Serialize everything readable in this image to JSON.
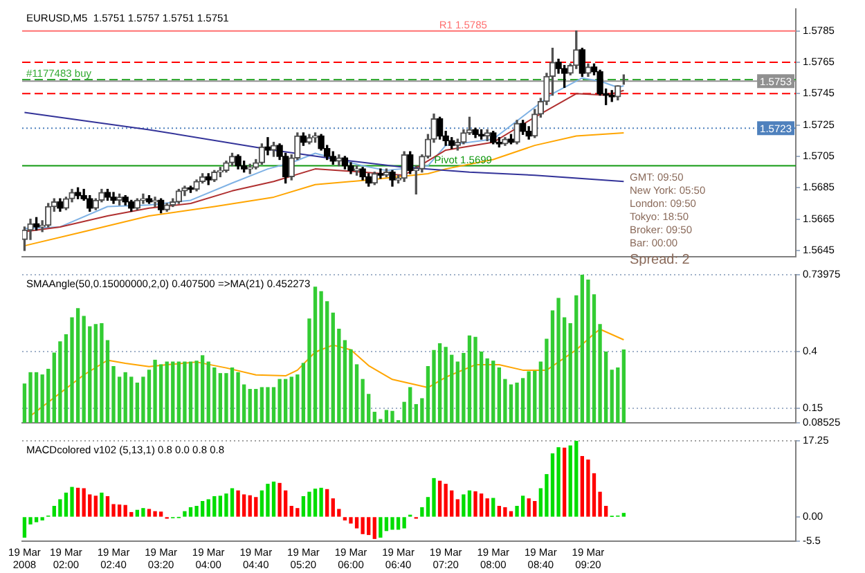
{
  "chart_data": [
    {
      "type": "candlestick",
      "title": "EURUSD,M5  1.5751 1.5757 1.5751 1.5751",
      "tick_labels": "y",
      "marker": "none",
      "xlim": [
        "2008-03-19T01:23",
        "2008-03-19T12:15"
      ],
      "ylim": [
        1.5641,
        1.5799
      ],
      "yticks": [
        1.5785,
        1.5765,
        1.5745,
        1.5725,
        1.5705,
        1.5685,
        1.5665,
        1.5645
      ],
      "x": [
        "2008-03-19T01:25",
        "2008-03-19T01:30",
        "2008-03-19T01:35",
        "2008-03-19T01:40",
        "2008-03-19T01:45",
        "2008-03-19T01:50",
        "2008-03-19T01:55",
        "2008-03-19T02:00",
        "2008-03-19T02:05",
        "2008-03-19T02:10",
        "2008-03-19T02:15",
        "2008-03-19T02:20",
        "2008-03-19T02:25",
        "2008-03-19T02:30",
        "2008-03-19T02:35",
        "2008-03-19T02:40",
        "2008-03-19T02:45",
        "2008-03-19T02:50",
        "2008-03-19T02:55",
        "2008-03-19T03:00",
        "2008-03-19T03:05",
        "2008-03-19T03:10",
        "2008-03-19T03:15",
        "2008-03-19T03:20",
        "2008-03-19T03:25",
        "2008-03-19T03:30",
        "2008-03-19T03:35",
        "2008-03-19T03:40",
        "2008-03-19T03:45",
        "2008-03-19T03:50",
        "2008-03-19T03:55",
        "2008-03-19T04:00",
        "2008-03-19T04:05",
        "2008-03-19T04:10",
        "2008-03-19T04:15",
        "2008-03-19T04:20",
        "2008-03-19T04:25",
        "2008-03-19T04:30",
        "2008-03-19T04:35",
        "2008-03-19T04:40",
        "2008-03-19T04:45",
        "2008-03-19T04:50",
        "2008-03-19T04:55",
        "2008-03-19T05:00",
        "2008-03-19T05:05",
        "2008-03-19T05:10",
        "2008-03-19T05:15",
        "2008-03-19T05:20",
        "2008-03-19T05:25",
        "2008-03-19T05:30",
        "2008-03-19T05:35",
        "2008-03-19T05:40",
        "2008-03-19T05:45",
        "2008-03-19T05:50",
        "2008-03-19T05:55",
        "2008-03-19T06:00",
        "2008-03-19T06:05",
        "2008-03-19T06:10",
        "2008-03-19T06:15",
        "2008-03-19T06:20",
        "2008-03-19T06:25",
        "2008-03-19T06:30",
        "2008-03-19T06:35",
        "2008-03-19T06:40",
        "2008-03-19T06:45",
        "2008-03-19T06:50",
        "2008-03-19T06:55",
        "2008-03-19T07:00",
        "2008-03-19T07:05",
        "2008-03-19T07:10",
        "2008-03-19T07:15",
        "2008-03-19T07:20",
        "2008-03-19T07:25",
        "2008-03-19T07:30",
        "2008-03-19T07:35",
        "2008-03-19T07:40",
        "2008-03-19T07:45",
        "2008-03-19T07:50",
        "2008-03-19T07:55",
        "2008-03-19T08:00",
        "2008-03-19T08:05",
        "2008-03-19T08:10",
        "2008-03-19T08:15",
        "2008-03-19T08:20",
        "2008-03-19T08:25",
        "2008-03-19T08:30",
        "2008-03-19T08:35",
        "2008-03-19T08:40",
        "2008-03-19T08:45",
        "2008-03-19T08:50",
        "2008-03-19T08:55",
        "2008-03-19T09:00",
        "2008-03-19T09:05",
        "2008-03-19T09:10",
        "2008-03-19T09:15",
        "2008-03-19T09:20",
        "2008-03-19T09:25",
        "2008-03-19T09:30",
        "2008-03-19T09:35",
        "2008-03-19T09:40",
        "2008-03-19T09:45",
        "2008-03-19T09:50"
      ],
      "ohlc": [
        [
          1.5652,
          1.566,
          1.5645,
          1.5658
        ],
        [
          1.5658,
          1.5665,
          1.5652,
          1.5662
        ],
        [
          1.5662,
          1.5666,
          1.5658,
          1.566
        ],
        [
          1.566,
          1.5664,
          1.5657,
          1.5661
        ],
        [
          1.5661,
          1.5675,
          1.566,
          1.5673
        ],
        [
          1.5673,
          1.5678,
          1.567,
          1.5676
        ],
        [
          1.5676,
          1.5678,
          1.567,
          1.5672
        ],
        [
          1.5672,
          1.5679,
          1.5671,
          1.5678
        ],
        [
          1.5678,
          1.5684,
          1.5676,
          1.5682
        ],
        [
          1.5682,
          1.5685,
          1.5678,
          1.568
        ],
        [
          1.568,
          1.5684,
          1.5677,
          1.5678
        ],
        [
          1.5678,
          1.568,
          1.567,
          1.5672
        ],
        [
          1.5672,
          1.5678,
          1.5671,
          1.5677
        ],
        [
          1.5677,
          1.5684,
          1.5676,
          1.5682
        ],
        [
          1.5682,
          1.5684,
          1.5677,
          1.5679
        ],
        [
          1.5679,
          1.5682,
          1.5675,
          1.5677
        ],
        [
          1.5677,
          1.5681,
          1.5674,
          1.5679
        ],
        [
          1.5679,
          1.568,
          1.5674,
          1.5676
        ],
        [
          1.5676,
          1.5677,
          1.567,
          1.5672
        ],
        [
          1.5672,
          1.5678,
          1.5671,
          1.5677
        ],
        [
          1.5677,
          1.5681,
          1.5675,
          1.5678
        ],
        [
          1.5678,
          1.568,
          1.5675,
          1.5676
        ],
        [
          1.5676,
          1.5679,
          1.5673,
          1.5677
        ],
        [
          1.5677,
          1.5678,
          1.5669,
          1.5671
        ],
        [
          1.5671,
          1.5675,
          1.567,
          1.5674
        ],
        [
          1.5674,
          1.5678,
          1.5673,
          1.5676
        ],
        [
          1.5676,
          1.5684,
          1.5675,
          1.5683
        ],
        [
          1.5683,
          1.5686,
          1.568,
          1.5685
        ],
        [
          1.5685,
          1.5686,
          1.5682,
          1.5684
        ],
        [
          1.5684,
          1.569,
          1.5683,
          1.5689
        ],
        [
          1.5689,
          1.5694,
          1.5688,
          1.5692
        ],
        [
          1.5692,
          1.5694,
          1.5687,
          1.569
        ],
        [
          1.569,
          1.5696,
          1.5689,
          1.5695
        ],
        [
          1.5695,
          1.5698,
          1.5692,
          1.5696
        ],
        [
          1.5696,
          1.5702,
          1.5695,
          1.5701
        ],
        [
          1.5701,
          1.5707,
          1.5699,
          1.5705
        ],
        [
          1.5705,
          1.5706,
          1.5697,
          1.5699
        ],
        [
          1.5699,
          1.5702,
          1.5695,
          1.5697
        ],
        [
          1.5697,
          1.57,
          1.5694,
          1.5698
        ],
        [
          1.5698,
          1.5703,
          1.5697,
          1.5701
        ],
        [
          1.5701,
          1.5713,
          1.57,
          1.5711
        ],
        [
          1.5711,
          1.5717,
          1.5706,
          1.5709
        ],
        [
          1.5709,
          1.5714,
          1.5705,
          1.5712
        ],
        [
          1.5712,
          1.5713,
          1.5703,
          1.5705
        ],
        [
          1.5705,
          1.5707,
          1.5688,
          1.5692
        ],
        [
          1.5692,
          1.5706,
          1.569,
          1.5704
        ],
        [
          1.5704,
          1.572,
          1.5703,
          1.5718
        ],
        [
          1.5718,
          1.572,
          1.5712,
          1.5714
        ],
        [
          1.5714,
          1.5719,
          1.5713,
          1.5717
        ],
        [
          1.5717,
          1.572,
          1.5714,
          1.5718
        ],
        [
          1.5718,
          1.5719,
          1.5709,
          1.571
        ],
        [
          1.571,
          1.5712,
          1.5703,
          1.5705
        ],
        [
          1.5705,
          1.5708,
          1.57,
          1.5702
        ],
        [
          1.5702,
          1.5706,
          1.5699,
          1.5704
        ],
        [
          1.5704,
          1.5705,
          1.5697,
          1.5699
        ],
        [
          1.5699,
          1.5701,
          1.5694,
          1.5696
        ],
        [
          1.5696,
          1.5699,
          1.5693,
          1.5697
        ],
        [
          1.5697,
          1.5698,
          1.569,
          1.5692
        ],
        [
          1.5692,
          1.5694,
          1.5686,
          1.5688
        ],
        [
          1.5688,
          1.5695,
          1.5687,
          1.5694
        ],
        [
          1.5694,
          1.5697,
          1.5691,
          1.5693
        ],
        [
          1.5693,
          1.5697,
          1.5692,
          1.5695
        ],
        [
          1.5695,
          1.5696,
          1.5686,
          1.569
        ],
        [
          1.569,
          1.5693,
          1.5688,
          1.5691
        ],
        [
          1.5691,
          1.5708,
          1.5689,
          1.5706
        ],
        [
          1.5706,
          1.5708,
          1.5694,
          1.5696
        ],
        [
          1.5696,
          1.5699,
          1.5681,
          1.5697
        ],
        [
          1.5697,
          1.5706,
          1.5695,
          1.5705
        ],
        [
          1.5705,
          1.5719,
          1.5704,
          1.5716
        ],
        [
          1.5716,
          1.5732,
          1.5714,
          1.5729
        ],
        [
          1.5729,
          1.573,
          1.5716,
          1.5718
        ],
        [
          1.5718,
          1.5721,
          1.5712,
          1.5715
        ],
        [
          1.5715,
          1.5717,
          1.571,
          1.5712
        ],
        [
          1.5712,
          1.5716,
          1.5709,
          1.5714
        ],
        [
          1.5714,
          1.5722,
          1.5713,
          1.572
        ],
        [
          1.572,
          1.573,
          1.5719,
          1.5722
        ],
        [
          1.5722,
          1.5723,
          1.5717,
          1.5719
        ],
        [
          1.5719,
          1.5722,
          1.5716,
          1.5718
        ],
        [
          1.5718,
          1.5722,
          1.5715,
          1.572
        ],
        [
          1.572,
          1.5721,
          1.5713,
          1.5714
        ],
        [
          1.5714,
          1.5717,
          1.5711,
          1.5713
        ],
        [
          1.5713,
          1.5717,
          1.5712,
          1.5716
        ],
        [
          1.5716,
          1.5719,
          1.5713,
          1.5714
        ],
        [
          1.5714,
          1.5728,
          1.5713,
          1.5726
        ],
        [
          1.5726,
          1.5728,
          1.5719,
          1.5721
        ],
        [
          1.5721,
          1.5724,
          1.5716,
          1.5718
        ],
        [
          1.5718,
          1.5735,
          1.5717,
          1.5732
        ],
        [
          1.5732,
          1.5742,
          1.573,
          1.574
        ],
        [
          1.574,
          1.5758,
          1.5738,
          1.5756
        ],
        [
          1.5756,
          1.5774,
          1.5744,
          1.5765
        ],
        [
          1.5765,
          1.5767,
          1.5758,
          1.5761
        ],
        [
          1.5761,
          1.5763,
          1.5749,
          1.5758
        ],
        [
          1.5758,
          1.5764,
          1.5757,
          1.5763
        ],
        [
          1.5763,
          1.5785,
          1.5761,
          1.5773
        ],
        [
          1.5773,
          1.5774,
          1.5756,
          1.5758
        ],
        [
          1.5758,
          1.5764,
          1.5756,
          1.5762
        ],
        [
          1.5762,
          1.5764,
          1.5757,
          1.5759
        ],
        [
          1.5759,
          1.576,
          1.5744,
          1.5745
        ],
        [
          1.5745,
          1.5748,
          1.5738,
          1.5744
        ],
        [
          1.5744,
          1.5747,
          1.574,
          1.5743
        ],
        [
          1.5743,
          1.575,
          1.5741,
          1.575
        ],
        [
          1.5751,
          1.5757,
          1.5751,
          1.5751
        ]
      ],
      "series": [
        {
          "type": "line",
          "color": "#333399",
          "x": [
            "2008-03-19T01:25",
            "2008-03-19T03:10",
            "2008-03-19T04:55",
            "2008-03-19T05:50",
            "2008-03-19T06:45",
            "2008-03-19T07:40",
            "2008-03-19T08:35",
            "2008-03-19T09:50"
          ],
          "values": [
            1.5733,
            1.5722,
            1.5709,
            1.5703,
            1.5698,
            1.5695,
            1.5693,
            1.5689
          ]
        },
        {
          "type": "line",
          "color": "#ffa500",
          "x": [
            "2008-03-19T01:25",
            "2008-03-19T02:15",
            "2008-03-19T03:10",
            "2008-03-19T04:05",
            "2008-03-19T04:55",
            "2008-03-19T05:30",
            "2008-03-19T06:15",
            "2008-03-19T07:05",
            "2008-03-19T07:20",
            "2008-03-19T08:00",
            "2008-03-19T08:35",
            "2008-03-19T09:10",
            "2008-03-19T09:50"
          ],
          "values": [
            1.5648,
            1.5657,
            1.5667,
            1.5673,
            1.5679,
            1.5687,
            1.569,
            1.5694,
            1.5697,
            1.5703,
            1.5712,
            1.5718,
            1.572
          ]
        },
        {
          "type": "line",
          "color": "#b03030",
          "x": [
            "2008-03-19T01:25",
            "2008-03-19T01:55",
            "2008-03-19T02:35",
            "2008-03-19T03:10",
            "2008-03-19T03:45",
            "2008-03-19T04:20",
            "2008-03-19T04:55",
            "2008-03-19T05:30",
            "2008-03-19T06:10",
            "2008-03-19T06:45",
            "2008-03-19T07:20",
            "2008-03-19T08:00",
            "2008-03-19T08:35",
            "2008-03-19T09:10",
            "2008-03-19T09:35",
            "2008-03-19T09:50"
          ],
          "values": [
            1.5657,
            1.566,
            1.5667,
            1.5672,
            1.5675,
            1.5683,
            1.5689,
            1.5697,
            1.5695,
            1.5693,
            1.5709,
            1.5714,
            1.573,
            1.5745,
            1.5744,
            1.5747
          ]
        },
        {
          "type": "line",
          "color": "#7fb2e5",
          "x": [
            "2008-03-19T01:25",
            "2008-03-19T01:55",
            "2008-03-19T02:35",
            "2008-03-19T03:10",
            "2008-03-19T03:45",
            "2008-03-19T04:20",
            "2008-03-19T04:50",
            "2008-03-19T05:10",
            "2008-03-19T05:30",
            "2008-03-19T05:50",
            "2008-03-19T06:10",
            "2008-03-19T06:30",
            "2008-03-19T07:05",
            "2008-03-19T07:20",
            "2008-03-19T08:00",
            "2008-03-19T08:50",
            "2008-03-19T09:15",
            "2008-03-19T09:30",
            "2008-03-19T09:45",
            "2008-03-19T09:50"
          ],
          "values": [
            1.5659,
            1.566,
            1.5673,
            1.5674,
            1.5677,
            1.5688,
            1.5697,
            1.5701,
            1.5707,
            1.5703,
            1.5699,
            1.5696,
            1.5699,
            1.5712,
            1.5716,
            1.5745,
            1.5755,
            1.5753,
            1.5749,
            1.575
          ]
        }
      ],
      "ref_lines": [
        {
          "axis": "y",
          "value": 1.5785,
          "label": "R1 1.5785",
          "color": "#ff7070",
          "line_style": "solid"
        },
        {
          "axis": "y",
          "value": 1.5765,
          "color": "#ff0000",
          "line_style": "dashed"
        },
        {
          "axis": "y",
          "value": 1.5745,
          "color": "#ff0000",
          "line_style": "dashed"
        },
        {
          "axis": "y",
          "value": 1.5754,
          "label": "#1177483 buy",
          "color": "#33aa33",
          "line_style": "dashed"
        },
        {
          "axis": "y",
          "value": 1.5753,
          "label": "1.5753",
          "color": "#909090",
          "line_style": "solid"
        },
        {
          "axis": "y",
          "value": 1.5723,
          "label": "1.5723",
          "color": "#4f81bd",
          "line_style": "dotted"
        },
        {
          "axis": "y",
          "value": 1.5699,
          "label": "Pivot 1.5699",
          "color": "#119911",
          "line_style": "solid"
        }
      ],
      "annotations": [
        "GMT: 09:50",
        "New York: 05:50",
        "London: 09:50",
        "Tokyo: 18:50",
        "Broker: 09:50",
        "Bar: 00:00",
        "Spread: 2"
      ]
    },
    {
      "type": "bar",
      "title": "SMAAngle(50,0.15000000,2,0) 0.407500 =>MA(21) 0.452273",
      "tick_labels": "y",
      "grid": "y",
      "marker": "none",
      "xlim": [
        "2008-03-19T01:23",
        "2008-03-19T12:15"
      ],
      "ylim": [
        0.08525,
        0.73975
      ],
      "yticks": [
        0.73975,
        0.4,
        0.15,
        0.08525
      ],
      "x": [
        "2008-03-19T01:25",
        "2008-03-19T01:30",
        "2008-03-19T01:35",
        "2008-03-19T01:40",
        "2008-03-19T01:45",
        "2008-03-19T01:50",
        "2008-03-19T01:55",
        "2008-03-19T02:00",
        "2008-03-19T02:05",
        "2008-03-19T02:10",
        "2008-03-19T02:15",
        "2008-03-19T02:20",
        "2008-03-19T02:25",
        "2008-03-19T02:30",
        "2008-03-19T02:35",
        "2008-03-19T02:40",
        "2008-03-19T02:45",
        "2008-03-19T02:50",
        "2008-03-19T02:55",
        "2008-03-19T03:00",
        "2008-03-19T03:05",
        "2008-03-19T03:10",
        "2008-03-19T03:15",
        "2008-03-19T03:20",
        "2008-03-19T03:25",
        "2008-03-19T03:30",
        "2008-03-19T03:35",
        "2008-03-19T03:40",
        "2008-03-19T03:45",
        "2008-03-19T03:50",
        "2008-03-19T03:55",
        "2008-03-19T04:00",
        "2008-03-19T04:05",
        "2008-03-19T04:10",
        "2008-03-19T04:15",
        "2008-03-19T04:20",
        "2008-03-19T04:25",
        "2008-03-19T04:30",
        "2008-03-19T04:35",
        "2008-03-19T04:40",
        "2008-03-19T04:45",
        "2008-03-19T04:50",
        "2008-03-19T04:55",
        "2008-03-19T05:00",
        "2008-03-19T05:05",
        "2008-03-19T05:10",
        "2008-03-19T05:15",
        "2008-03-19T05:20",
        "2008-03-19T05:25",
        "2008-03-19T05:30",
        "2008-03-19T05:35",
        "2008-03-19T05:40",
        "2008-03-19T05:45",
        "2008-03-19T05:50",
        "2008-03-19T05:55",
        "2008-03-19T06:00",
        "2008-03-19T06:05",
        "2008-03-19T06:10",
        "2008-03-19T06:15",
        "2008-03-19T06:20",
        "2008-03-19T06:25",
        "2008-03-19T06:30",
        "2008-03-19T06:35",
        "2008-03-19T06:40",
        "2008-03-19T06:45",
        "2008-03-19T06:50",
        "2008-03-19T06:55",
        "2008-03-19T07:00",
        "2008-03-19T07:05",
        "2008-03-19T07:10",
        "2008-03-19T07:15",
        "2008-03-19T07:20",
        "2008-03-19T07:25",
        "2008-03-19T07:30",
        "2008-03-19T07:35",
        "2008-03-19T07:40",
        "2008-03-19T07:45",
        "2008-03-19T07:50",
        "2008-03-19T07:55",
        "2008-03-19T08:00",
        "2008-03-19T08:05",
        "2008-03-19T08:10",
        "2008-03-19T08:15",
        "2008-03-19T08:20",
        "2008-03-19T08:25",
        "2008-03-19T08:30",
        "2008-03-19T08:35",
        "2008-03-19T08:40",
        "2008-03-19T08:45",
        "2008-03-19T08:50",
        "2008-03-19T08:55",
        "2008-03-19T09:00",
        "2008-03-19T09:05",
        "2008-03-19T09:10",
        "2008-03-19T09:15",
        "2008-03-19T09:20",
        "2008-03-19T09:25",
        "2008-03-19T09:30",
        "2008-03-19T09:35",
        "2008-03-19T09:40",
        "2008-03-19T09:45",
        "2008-03-19T09:50"
      ],
      "series": [
        {
          "type": "bar",
          "color": "#33cc33",
          "values": [
            0.257,
            0.307,
            0.307,
            0.297,
            0.322,
            0.394,
            0.443,
            0.475,
            0.55,
            0.59,
            0.556,
            0.51,
            0.52,
            0.524,
            0.449,
            0.334,
            0.287,
            0.307,
            0.287,
            0.261,
            0.287,
            0.318,
            0.362,
            0.342,
            0.354,
            0.354,
            0.354,
            0.354,
            0.354,
            0.358,
            0.382,
            0.354,
            0.328,
            0.303,
            0.303,
            0.328,
            0.307,
            0.253,
            0.233,
            0.233,
            0.241,
            0.241,
            0.241,
            0.277,
            0.277,
            0.287,
            0.297,
            0.348,
            0.544,
            0.685,
            0.665,
            0.621,
            0.57,
            0.499,
            0.449,
            0.408,
            0.342,
            0.277,
            0.211,
            0.132,
            0.1,
            0.14,
            0.136,
            0.095,
            0.176,
            0.241,
            0.166,
            0.192,
            0.334,
            0.405,
            0.435,
            0.419,
            0.384,
            0.354,
            0.392,
            0.469,
            0.463,
            0.398,
            0.368,
            0.358,
            0.328,
            0.277,
            0.253,
            0.261,
            0.281,
            0.311,
            0.313,
            0.354,
            0.455,
            0.58,
            0.635,
            0.55,
            0.524,
            0.647,
            0.739,
            0.716,
            0.651,
            0.52,
            0.398,
            0.318,
            0.328,
            0.4075
          ]
        },
        {
          "type": "line",
          "color": "#ffa500",
          "x": [
            "2008-03-19T01:30",
            "2008-03-19T01:55",
            "2008-03-19T02:15",
            "2008-03-19T02:35",
            "2008-03-19T02:50",
            "2008-03-19T03:10",
            "2008-03-19T03:25",
            "2008-03-19T03:50",
            "2008-03-19T04:15",
            "2008-03-19T04:40",
            "2008-03-19T05:05",
            "2008-03-19T05:15",
            "2008-03-19T05:30",
            "2008-03-19T05:45",
            "2008-03-19T06:00",
            "2008-03-19T06:15",
            "2008-03-19T06:35",
            "2008-03-19T07:05",
            "2008-03-19T07:20",
            "2008-03-19T07:45",
            "2008-03-19T08:05",
            "2008-03-19T08:25",
            "2008-03-19T08:45",
            "2008-03-19T09:10",
            "2008-03-19T09:25",
            "2008-03-19T09:30",
            "2008-03-19T09:50"
          ],
          "values": [
            0.116,
            0.217,
            0.297,
            0.362,
            0.348,
            0.334,
            0.342,
            0.354,
            0.328,
            0.297,
            0.293,
            0.318,
            0.398,
            0.429,
            0.408,
            0.338,
            0.277,
            0.241,
            0.287,
            0.342,
            0.342,
            0.318,
            0.318,
            0.408,
            0.479,
            0.499,
            0.4523
          ]
        }
      ]
    },
    {
      "type": "bar",
      "title": "MACDcolored v102 (5,13,1) 0.8 0.0 0.8 0.8",
      "xlim": [
        "2008-03-19T01:23",
        "2008-03-19T12:15"
      ],
      "ylim": [
        -5.5,
        17.25
      ],
      "yticks": [
        17.25,
        {
          "value": 0,
          "label": "0.00"
        },
        -5.5
      ],
      "xticks": [
        {
          "value": "2008-03-19T01:25",
          "label": "19 Mar 2008"
        },
        {
          "value": "2008-03-19T02:00",
          "label": "19 Mar 02:00"
        },
        {
          "value": "2008-03-19T02:40",
          "label": "19 Mar 02:40"
        },
        {
          "value": "2008-03-19T03:20",
          "label": "19 Mar 03:20"
        },
        {
          "value": "2008-03-19T04:00",
          "label": "19 Mar 04:00"
        },
        {
          "value": "2008-03-19T04:40",
          "label": "19 Mar 04:40"
        },
        {
          "value": "2008-03-19T05:20",
          "label": "19 Mar 05:20"
        },
        {
          "value": "2008-03-19T06:00",
          "label": "19 Mar 06:00"
        },
        {
          "value": "2008-03-19T06:40",
          "label": "19 Mar 06:40"
        },
        {
          "value": "2008-03-19T07:20",
          "label": "19 Mar 07:20"
        },
        {
          "value": "2008-03-19T08:00",
          "label": "19 Mar 08:00"
        },
        {
          "value": "2008-03-19T08:40",
          "label": "19 Mar 08:40"
        },
        {
          "value": "2008-03-19T09:20",
          "label": "19 Mar 09:20"
        }
      ],
      "x": [
        "2008-03-19T01:25",
        "2008-03-19T01:30",
        "2008-03-19T01:35",
        "2008-03-19T01:40",
        "2008-03-19T01:45",
        "2008-03-19T01:50",
        "2008-03-19T01:55",
        "2008-03-19T02:00",
        "2008-03-19T02:05",
        "2008-03-19T02:10",
        "2008-03-19T02:15",
        "2008-03-19T02:20",
        "2008-03-19T02:25",
        "2008-03-19T02:30",
        "2008-03-19T02:35",
        "2008-03-19T02:40",
        "2008-03-19T02:45",
        "2008-03-19T02:50",
        "2008-03-19T02:55",
        "2008-03-19T03:00",
        "2008-03-19T03:05",
        "2008-03-19T03:10",
        "2008-03-19T03:15",
        "2008-03-19T03:20",
        "2008-03-19T03:25",
        "2008-03-19T03:30",
        "2008-03-19T03:35",
        "2008-03-19T03:40",
        "2008-03-19T03:45",
        "2008-03-19T03:50",
        "2008-03-19T03:55",
        "2008-03-19T04:00",
        "2008-03-19T04:05",
        "2008-03-19T04:10",
        "2008-03-19T04:15",
        "2008-03-19T04:20",
        "2008-03-19T04:25",
        "2008-03-19T04:30",
        "2008-03-19T04:35",
        "2008-03-19T04:40",
        "2008-03-19T04:45",
        "2008-03-19T04:50",
        "2008-03-19T04:55",
        "2008-03-19T05:00",
        "2008-03-19T05:05",
        "2008-03-19T05:10",
        "2008-03-19T05:15",
        "2008-03-19T05:20",
        "2008-03-19T05:25",
        "2008-03-19T05:30",
        "2008-03-19T05:35",
        "2008-03-19T05:40",
        "2008-03-19T05:45",
        "2008-03-19T05:50",
        "2008-03-19T05:55",
        "2008-03-19T06:00",
        "2008-03-19T06:05",
        "2008-03-19T06:10",
        "2008-03-19T06:15",
        "2008-03-19T06:20",
        "2008-03-19T06:25",
        "2008-03-19T06:30",
        "2008-03-19T06:35",
        "2008-03-19T06:40",
        "2008-03-19T06:45",
        "2008-03-19T06:50",
        "2008-03-19T06:55",
        "2008-03-19T07:00",
        "2008-03-19T07:05",
        "2008-03-19T07:10",
        "2008-03-19T07:15",
        "2008-03-19T07:20",
        "2008-03-19T07:25",
        "2008-03-19T07:30",
        "2008-03-19T07:35",
        "2008-03-19T07:40",
        "2008-03-19T07:45",
        "2008-03-19T07:50",
        "2008-03-19T07:55",
        "2008-03-19T08:00",
        "2008-03-19T08:05",
        "2008-03-19T08:10",
        "2008-03-19T08:15",
        "2008-03-19T08:20",
        "2008-03-19T08:25",
        "2008-03-19T08:30",
        "2008-03-19T08:35",
        "2008-03-19T08:40",
        "2008-03-19T08:45",
        "2008-03-19T08:50",
        "2008-03-19T08:55",
        "2008-03-19T09:00",
        "2008-03-19T09:05",
        "2008-03-19T09:10",
        "2008-03-19T09:15",
        "2008-03-19T09:20",
        "2008-03-19T09:25",
        "2008-03-19T09:30",
        "2008-03-19T09:35",
        "2008-03-19T09:40",
        "2008-03-19T09:45",
        "2008-03-19T09:50"
      ],
      "values": [
        -4.6,
        -1.6,
        -1.1,
        -0.7,
        0.2,
        2.4,
        3.9,
        5.4,
        6.7,
        6.5,
        6.4,
        5.0,
        4.7,
        5.4,
        4.6,
        2.8,
        2.7,
        2.6,
        1.0,
        1.5,
        1.9,
        1.7,
        1.2,
        1.1,
        -0.3,
        -0.2,
        -0.1,
        1.2,
        2.1,
        2.4,
        3.5,
        3.9,
        4.6,
        4.7,
        5.2,
        6.4,
        5.9,
        5.0,
        4.8,
        4.4,
        5.9,
        7.4,
        7.9,
        7.6,
        5.9,
        2.4,
        1.9,
        4.6,
        5.6,
        6.3,
        6.5,
        6.2,
        4.1,
        1.7,
        -0.7,
        -1.4,
        -2.5,
        -3.8,
        -4.0,
        -4.9,
        -4.6,
        -3.1,
        -2.8,
        -2.8,
        -2.5,
        0.4,
        -0.3,
        2.1,
        4.4,
        8.7,
        8.1,
        7.4,
        5.9,
        3.9,
        5.0,
        5.9,
        5.7,
        5.2,
        4.1,
        4.2,
        2.4,
        2.1,
        1.2,
        2.4,
        4.7,
        4.1,
        3.5,
        6.4,
        9.6,
        14.3,
        15.7,
        15.6,
        16.1,
        17.2,
        13.7,
        12.9,
        9.8,
        5.6,
        2.4,
        0.1,
        0.2,
        0.8
      ],
      "colors": [
        "#00dd00",
        "#00dd00",
        "#00dd00",
        "#00dd00",
        "#00dd00",
        "#00dd00",
        "#00dd00",
        "#00dd00",
        "#00dd00",
        "#ff0000",
        "#ff0000",
        "#ff0000",
        "#ff0000",
        "#00dd00",
        "#ff0000",
        "#ff0000",
        "#ff0000",
        "#ff0000",
        "#ff0000",
        "#00dd00",
        "#00dd00",
        "#ff0000",
        "#ff0000",
        "#ff0000",
        "#ff0000",
        "#00dd00",
        "#00dd00",
        "#00dd00",
        "#00dd00",
        "#00dd00",
        "#00dd00",
        "#00dd00",
        "#00dd00",
        "#00dd00",
        "#00dd00",
        "#00dd00",
        "#ff0000",
        "#ff0000",
        "#ff0000",
        "#ff0000",
        "#00dd00",
        "#00dd00",
        "#00dd00",
        "#ff0000",
        "#ff0000",
        "#ff0000",
        "#ff0000",
        "#00dd00",
        "#00dd00",
        "#00dd00",
        "#00dd00",
        "#ff0000",
        "#ff0000",
        "#ff0000",
        "#ff0000",
        "#ff0000",
        "#ff0000",
        "#ff0000",
        "#ff0000",
        "#ff0000",
        "#00dd00",
        "#00dd00",
        "#00dd00",
        "#00dd00",
        "#00dd00",
        "#00dd00",
        "#ff0000",
        "#00dd00",
        "#00dd00",
        "#00dd00",
        "#ff0000",
        "#ff0000",
        "#ff0000",
        "#ff0000",
        "#00dd00",
        "#00dd00",
        "#ff0000",
        "#ff0000",
        "#ff0000",
        "#00dd00",
        "#ff0000",
        "#ff0000",
        "#ff0000",
        "#00dd00",
        "#00dd00",
        "#ff0000",
        "#ff0000",
        "#00dd00",
        "#00dd00",
        "#00dd00",
        "#00dd00",
        "#ff0000",
        "#00dd00",
        "#00dd00",
        "#ff0000",
        "#ff0000",
        "#ff0000",
        "#ff0000",
        "#ff0000",
        "#00dd00",
        "#00dd00",
        "#00dd00"
      ],
      "ref_lines": [
        {
          "axis": "y",
          "value": 17.25,
          "color": "#a0a0a0",
          "line_style": "dotted"
        }
      ]
    }
  ]
}
